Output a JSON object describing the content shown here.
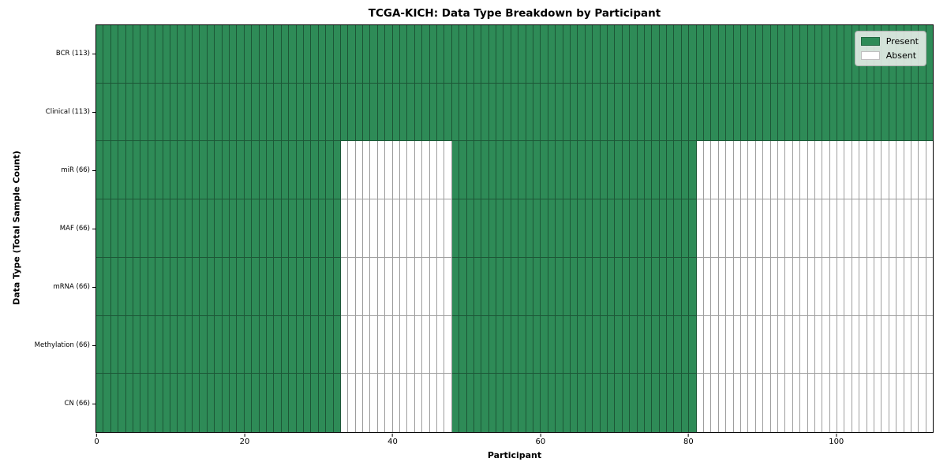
{
  "chart_data": {
    "type": "heatmap",
    "title": "TCGA-KICH: Data Type Breakdown by Participant",
    "xlabel": "Participant",
    "ylabel": "Data Type (Total Sample Count)",
    "n_participants": 113,
    "xlim": [
      0,
      113
    ],
    "x_ticks": [
      0,
      20,
      40,
      60,
      80,
      100
    ],
    "grid": "cell-borders",
    "legend_position": "upper right",
    "legend_items": [
      {
        "label": "Present",
        "color": "#2e8b57"
      },
      {
        "label": "Absent",
        "color": "#ffffff"
      }
    ],
    "colors": {
      "present": "#2e8b57",
      "absent": "#ffffff",
      "cell_edge": "rgba(0,0,0,0.38)",
      "frame": "#000000"
    },
    "rows": [
      {
        "label": "BCR (113)",
        "data_type": "BCR",
        "total_samples": 113,
        "present_ranges": [
          [
            0,
            113
          ]
        ]
      },
      {
        "label": "Clinical (113)",
        "data_type": "Clinical",
        "total_samples": 113,
        "present_ranges": [
          [
            0,
            113
          ]
        ]
      },
      {
        "label": "miR (66)",
        "data_type": "miR",
        "total_samples": 66,
        "present_ranges": [
          [
            0,
            33
          ],
          [
            48,
            81
          ]
        ]
      },
      {
        "label": "MAF (66)",
        "data_type": "MAF",
        "total_samples": 66,
        "present_ranges": [
          [
            0,
            33
          ],
          [
            48,
            81
          ]
        ]
      },
      {
        "label": "mRNA (66)",
        "data_type": "mRNA",
        "total_samples": 66,
        "present_ranges": [
          [
            0,
            33
          ],
          [
            48,
            81
          ]
        ]
      },
      {
        "label": "Methylation (66)",
        "data_type": "Methylation",
        "total_samples": 66,
        "present_ranges": [
          [
            0,
            33
          ],
          [
            48,
            81
          ]
        ]
      },
      {
        "label": "CN (66)",
        "data_type": "CN",
        "total_samples": 66,
        "present_ranges": [
          [
            0,
            33
          ],
          [
            48,
            81
          ]
        ]
      }
    ]
  }
}
